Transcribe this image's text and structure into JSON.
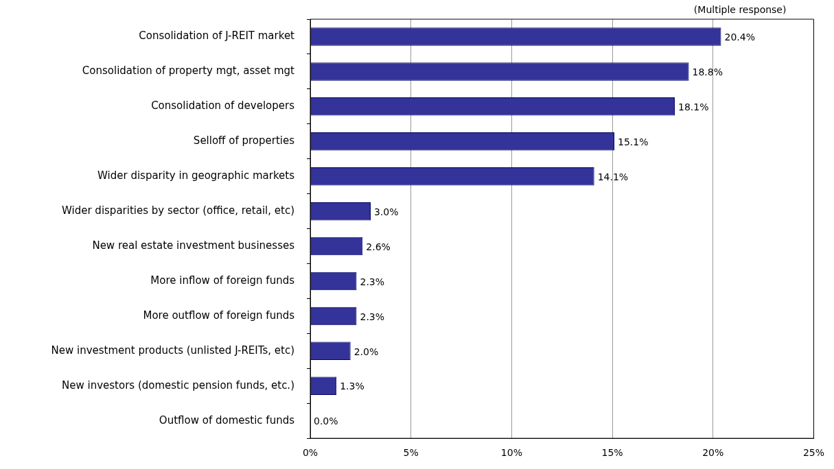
{
  "chart_data": {
    "type": "bar",
    "orientation": "horizontal",
    "categories": [
      "Consolidation of J-REIT market",
      "Consolidation of property mgt, asset mgt",
      "Consolidation of developers",
      "Selloff of properties",
      "Wider disparity in geographic markets",
      "Wider disparities by sector (office, retail, etc)",
      "New real estate investment businesses",
      "More inflow of foreign funds",
      "More outflow of foreign funds",
      "New investment products (unlisted J-REITs, etc)",
      "New investors (domestic pension funds, etc.)",
      "Outflow of domestic funds"
    ],
    "values": [
      20.4,
      18.8,
      18.1,
      15.1,
      14.1,
      3.0,
      2.6,
      2.3,
      2.3,
      2.0,
      1.3,
      0.0
    ],
    "value_labels": [
      "20.4%",
      "18.8%",
      "18.1%",
      "15.1%",
      "14.1%",
      "3.0%",
      "2.6%",
      "2.3%",
      "2.3%",
      "2.0%",
      "1.3%",
      "0.0%"
    ],
    "color": "#333399",
    "xlim": [
      0,
      25
    ],
    "xticks": [
      {
        "value": 0,
        "label": "0%"
      },
      {
        "value": 5,
        "label": "5%"
      },
      {
        "value": 10,
        "label": "10%"
      },
      {
        "value": 15,
        "label": "15%"
      },
      {
        "value": 20,
        "label": "20%"
      },
      {
        "value": 25,
        "label": "25%"
      }
    ],
    "grid": "x",
    "annotations": [
      "(Multiple response)"
    ]
  }
}
